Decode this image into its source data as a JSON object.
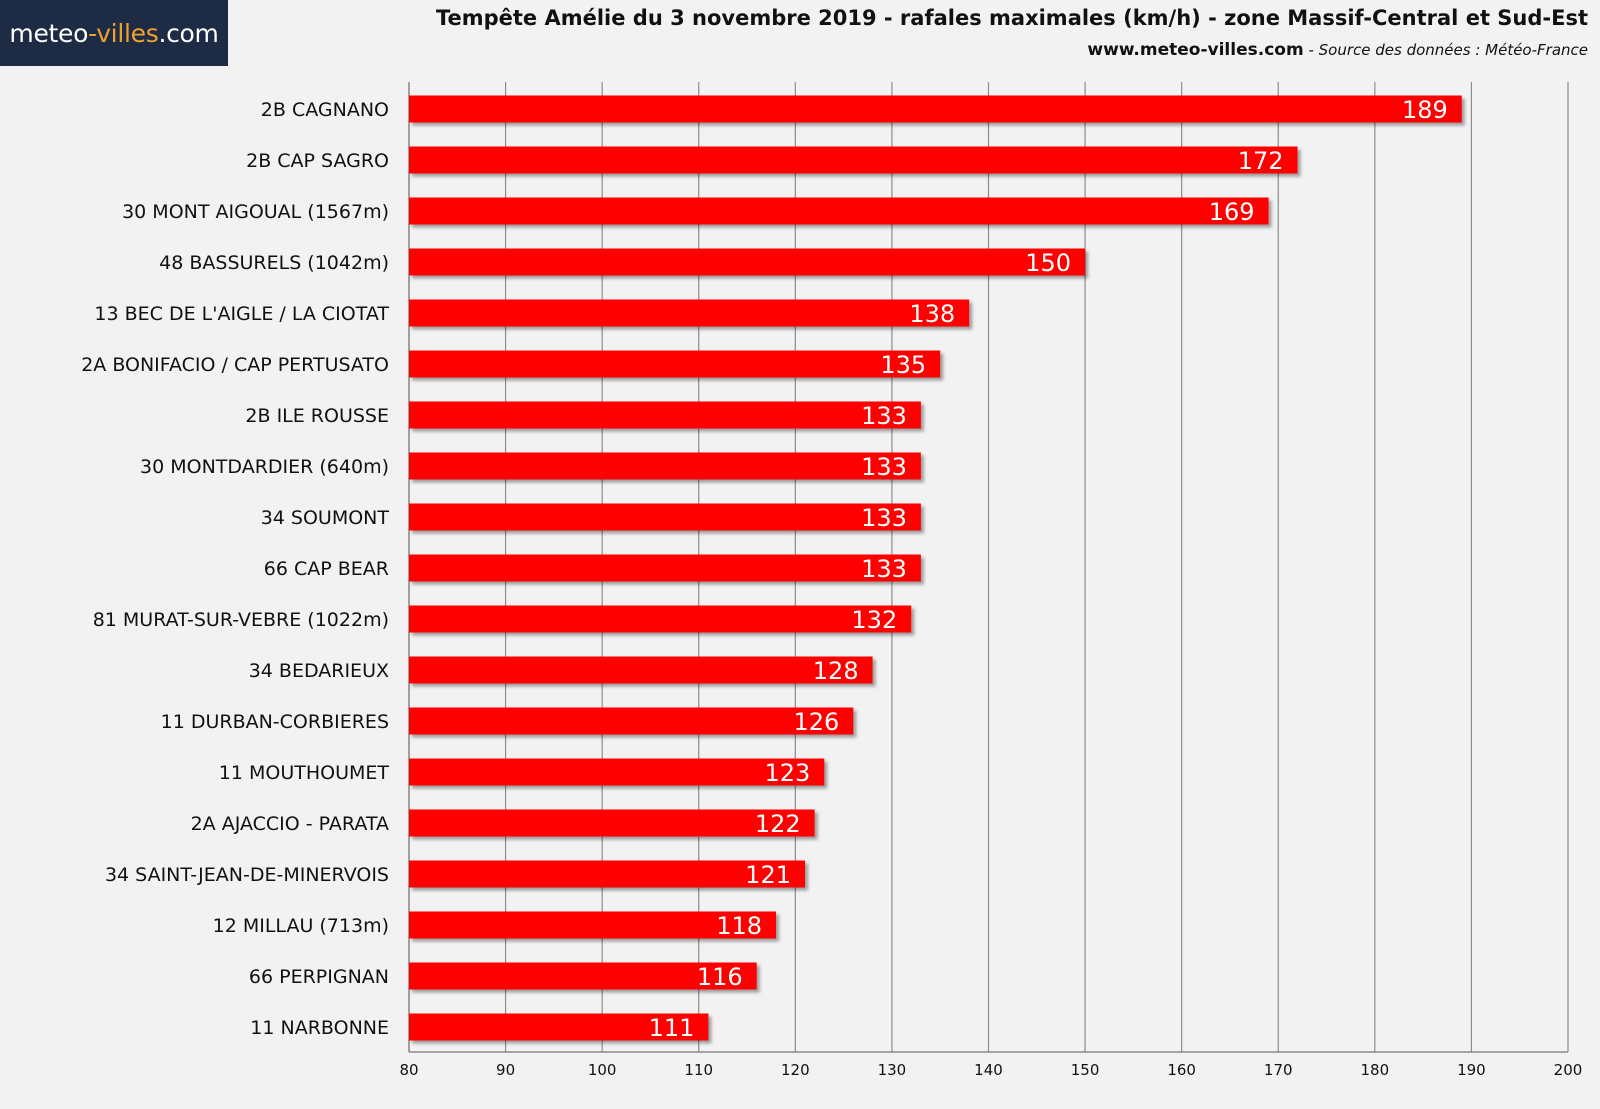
{
  "logo": {
    "part1": "meteo",
    "part2": "-villes",
    "part3": ".com"
  },
  "header": {
    "title": "Tempête Amélie du 3 novembre 2019 - rafales maximales (km/h) - zone Massif-Central et Sud-Est",
    "site": "www.meteo-villes.com",
    "sep": " - ",
    "source": "Source des données : Météo-France"
  },
  "colors": {
    "bar": "#ff0000",
    "label": "#ffffff",
    "grid": "#8c8c8c",
    "background": "#f2f2f2",
    "logo_bg": "#1d2b44",
    "logo_accent": "#f0a030"
  },
  "chart_data": {
    "type": "bar",
    "orientation": "horizontal",
    "categories": [
      "2B CAGNANO",
      "2B CAP SAGRO",
      "30 MONT AIGOUAL (1567m)",
      "48 BASSURELS (1042m)",
      "13 BEC DE L'AIGLE / LA CIOTAT",
      "2A BONIFACIO / CAP PERTUSATO",
      "2B ILE ROUSSE",
      "30 MONTDARDIER (640m)",
      "34 SOUMONT",
      "66 CAP BEAR",
      "81 MURAT-SUR-VEBRE (1022m)",
      "34 BEDARIEUX",
      "11 DURBAN-CORBIERES",
      "11 MOUTHOUMET",
      "2A AJACCIO - PARATA",
      "34 SAINT-JEAN-DE-MINERVOIS",
      "12 MILLAU (713m)",
      "66 PERPIGNAN",
      "11 NARBONNE"
    ],
    "values": [
      189,
      172,
      169,
      150,
      138,
      135,
      133,
      133,
      133,
      133,
      132,
      128,
      126,
      123,
      122,
      121,
      118,
      116,
      111
    ],
    "xlim": [
      80,
      200
    ],
    "xticks": [
      80,
      90,
      100,
      110,
      120,
      130,
      140,
      150,
      160,
      170,
      180,
      190,
      200
    ],
    "grid": "vertical",
    "data_labels": true
  }
}
